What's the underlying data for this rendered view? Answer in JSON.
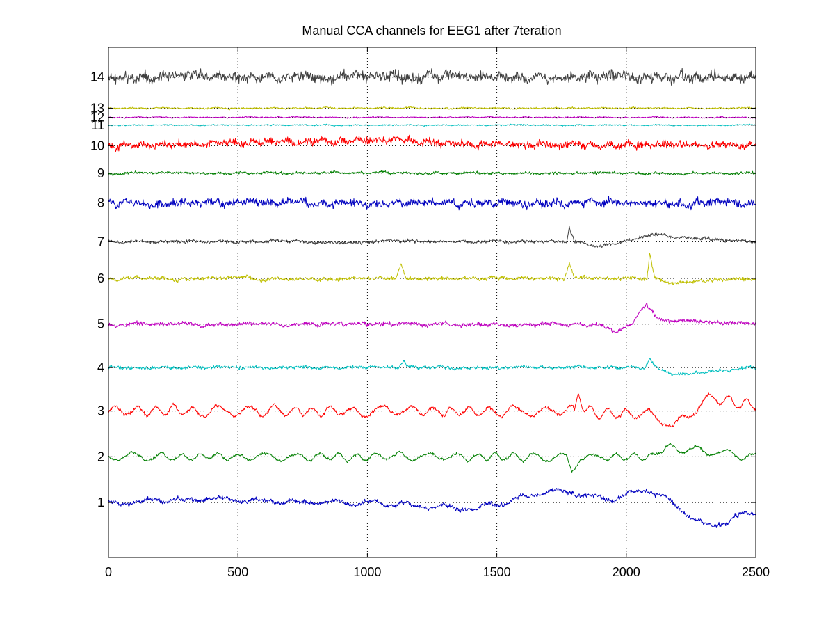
{
  "chart_data": {
    "type": "line",
    "title": "Manual CCA channels for EEG1 after  7teration",
    "xlabel": "",
    "ylabel": "",
    "xlim": [
      0,
      2500
    ],
    "ylim": [
      -0.2,
      10.95
    ],
    "xticks": [
      0,
      500,
      1000,
      1500,
      2000,
      2500
    ],
    "xtick_labels": [
      "0",
      "500",
      "1000",
      "1500",
      "2000",
      "2500"
    ],
    "grid": "dotted",
    "samples": 2500,
    "series": [
      {
        "name": "1",
        "offset": 1.0,
        "color": "#0000bf",
        "amp": 0.13,
        "seed": 11,
        "style": "drift",
        "shape": [
          [
            0,
            0.0
          ],
          [
            300,
            0.05
          ],
          [
            500,
            0.05
          ],
          [
            900,
            0.0
          ],
          [
            1150,
            -0.05
          ],
          [
            1300,
            -0.12
          ],
          [
            1420,
            -0.15
          ],
          [
            1600,
            0.1
          ],
          [
            1720,
            0.25
          ],
          [
            1800,
            0.2
          ],
          [
            1950,
            0.05
          ],
          [
            2080,
            0.32
          ],
          [
            2150,
            0.1
          ],
          [
            2250,
            -0.3
          ],
          [
            2330,
            -0.55
          ],
          [
            2420,
            -0.3
          ],
          [
            2500,
            -0.25
          ]
        ]
      },
      {
        "name": "2",
        "offset": 2.0,
        "color": "#007f00",
        "amp": 0.12,
        "seed": 23,
        "style": "wave",
        "shape": [
          [
            0,
            0.0
          ],
          [
            1450,
            0.0
          ],
          [
            1770,
            0.0
          ],
          [
            1790,
            -0.3
          ],
          [
            1820,
            0.0
          ],
          [
            2100,
            0.0
          ],
          [
            2150,
            0.2
          ],
          [
            2500,
            0.0
          ]
        ]
      },
      {
        "name": "3",
        "offset": 3.0,
        "color": "#ff0000",
        "amp": 0.16,
        "seed": 37,
        "style": "wave",
        "shape": [
          [
            0,
            0.0
          ],
          [
            1800,
            0.0
          ],
          [
            1815,
            0.45
          ],
          [
            1840,
            0.0
          ],
          [
            2120,
            -0.1
          ],
          [
            2180,
            -0.35
          ],
          [
            2240,
            -0.1
          ],
          [
            2320,
            0.3
          ],
          [
            2500,
            0.1
          ]
        ]
      },
      {
        "name": "4",
        "offset": 3.95,
        "color": "#00bfbf",
        "amp": 0.06,
        "seed": 41,
        "style": "noise",
        "shape": [
          [
            0,
            0.0
          ],
          [
            1120,
            0.0
          ],
          [
            1140,
            0.15
          ],
          [
            1160,
            0.0
          ],
          [
            2070,
            0.0
          ],
          [
            2090,
            0.2
          ],
          [
            2120,
            0.0
          ],
          [
            2180,
            -0.15
          ],
          [
            2300,
            -0.1
          ],
          [
            2500,
            0.0
          ]
        ]
      },
      {
        "name": "5",
        "offset": 4.9,
        "color": "#bf00bf",
        "amp": 0.08,
        "seed": 53,
        "style": "noise",
        "shape": [
          [
            0,
            0.0
          ],
          [
            1900,
            0.0
          ],
          [
            1960,
            -0.15
          ],
          [
            2020,
            0.0
          ],
          [
            2080,
            0.45
          ],
          [
            2120,
            0.1
          ],
          [
            2500,
            0.0
          ]
        ]
      },
      {
        "name": "6",
        "offset": 5.9,
        "color": "#bfbf00",
        "amp": 0.07,
        "seed": 67,
        "style": "noise",
        "shape": [
          [
            0,
            0.0
          ],
          [
            1110,
            0.0
          ],
          [
            1130,
            0.3
          ],
          [
            1150,
            0.0
          ],
          [
            1760,
            0.0
          ],
          [
            1780,
            0.35
          ],
          [
            1800,
            0.0
          ],
          [
            2080,
            0.0
          ],
          [
            2090,
            0.55
          ],
          [
            2110,
            0.0
          ],
          [
            2160,
            -0.1
          ],
          [
            2500,
            0.0
          ]
        ]
      },
      {
        "name": "7",
        "offset": 6.7,
        "color": "#3f3f3f",
        "amp": 0.06,
        "seed": 71,
        "style": "noise",
        "shape": [
          [
            0,
            0.0
          ],
          [
            1770,
            0.0
          ],
          [
            1780,
            0.3
          ],
          [
            1800,
            0.0
          ],
          [
            1900,
            -0.1
          ],
          [
            2090,
            0.15
          ],
          [
            2500,
            0.0
          ]
        ]
      },
      {
        "name": "8",
        "offset": 7.55,
        "color": "#0000bf",
        "amp": 0.12,
        "seed": 83,
        "style": "fast",
        "shape": [
          [
            0,
            0.0
          ],
          [
            2500,
            0.0
          ]
        ]
      },
      {
        "name": "9",
        "offset": 8.2,
        "color": "#007f00",
        "amp": 0.05,
        "seed": 97,
        "style": "noise",
        "shape": [
          [
            0,
            0.0
          ],
          [
            2500,
            0.0
          ]
        ]
      },
      {
        "name": "10",
        "offset": 8.8,
        "color": "#ff0000",
        "amp": 0.11,
        "seed": 101,
        "style": "fast",
        "shape": [
          [
            0,
            0.0
          ],
          [
            1150,
            0.15
          ],
          [
            1250,
            0.05
          ],
          [
            2500,
            0.0
          ]
        ]
      },
      {
        "name": "11",
        "offset": 9.25,
        "color": "#00bfbf",
        "amp": 0.025,
        "seed": 113,
        "style": "noise",
        "shape": [
          [
            0,
            0.0
          ],
          [
            2500,
            0.0
          ]
        ]
      },
      {
        "name": "12",
        "offset": 9.42,
        "color": "#bf00bf",
        "amp": 0.025,
        "seed": 127,
        "style": "noise",
        "shape": [
          [
            0,
            0.0
          ],
          [
            2500,
            0.0
          ]
        ]
      },
      {
        "name": "13",
        "offset": 9.62,
        "color": "#bfbf00",
        "amp": 0.03,
        "seed": 131,
        "style": "noise",
        "shape": [
          [
            0,
            0.0
          ],
          [
            2500,
            0.0
          ]
        ]
      },
      {
        "name": "14",
        "offset": 10.3,
        "color": "#3f3f3f",
        "amp": 0.16,
        "seed": 149,
        "style": "fast",
        "shape": [
          [
            0,
            0.0
          ],
          [
            2500,
            0.0
          ]
        ]
      }
    ]
  }
}
